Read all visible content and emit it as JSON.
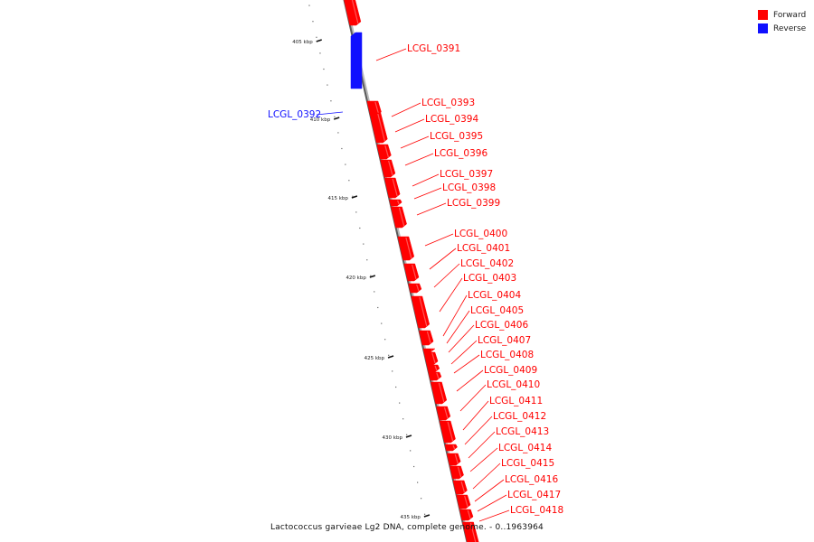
{
  "legend": {
    "forward": {
      "label": "Forward",
      "color": "#ff0000"
    },
    "reverse": {
      "label": "Reverse",
      "color": "#1010ff"
    }
  },
  "caption": "Lactococcus garvieae Lg2 DNA, complete genome. - 0..1963964",
  "ruler": {
    "unit": "kbp",
    "ticks": [
      {
        "kbp": 405,
        "label": "405 kbp"
      },
      {
        "kbp": 410,
        "label": "410 kbp"
      },
      {
        "kbp": 415,
        "label": "415 kbp"
      },
      {
        "kbp": 420,
        "label": "420 kbp"
      },
      {
        "kbp": 425,
        "label": "425 kbp"
      },
      {
        "kbp": 430,
        "label": "430 kbp"
      },
      {
        "kbp": 435,
        "label": "435 kbp"
      }
    ]
  },
  "genes": [
    {
      "name": "LCGL_0391",
      "strand": "forward"
    },
    {
      "name": "LCGL_0392",
      "strand": "reverse"
    },
    {
      "name": "LCGL_0393",
      "strand": "forward"
    },
    {
      "name": "LCGL_0394",
      "strand": "forward"
    },
    {
      "name": "LCGL_0395",
      "strand": "forward"
    },
    {
      "name": "LCGL_0396",
      "strand": "forward"
    },
    {
      "name": "LCGL_0397",
      "strand": "forward"
    },
    {
      "name": "LCGL_0398",
      "strand": "forward"
    },
    {
      "name": "LCGL_0399",
      "strand": "forward"
    },
    {
      "name": "LCGL_0400",
      "strand": "forward"
    },
    {
      "name": "LCGL_0401",
      "strand": "forward"
    },
    {
      "name": "LCGL_0402",
      "strand": "forward"
    },
    {
      "name": "LCGL_0403",
      "strand": "forward"
    },
    {
      "name": "LCGL_0404",
      "strand": "forward"
    },
    {
      "name": "LCGL_0405",
      "strand": "forward"
    },
    {
      "name": "LCGL_0406",
      "strand": "forward"
    },
    {
      "name": "LCGL_0407",
      "strand": "forward"
    },
    {
      "name": "LCGL_0408",
      "strand": "forward"
    },
    {
      "name": "LCGL_0409",
      "strand": "forward"
    },
    {
      "name": "LCGL_0410",
      "strand": "forward"
    },
    {
      "name": "LCGL_0411",
      "strand": "forward"
    },
    {
      "name": "LCGL_0412",
      "strand": "forward"
    },
    {
      "name": "LCGL_0413",
      "strand": "forward"
    },
    {
      "name": "LCGL_0414",
      "strand": "forward"
    },
    {
      "name": "LCGL_0415",
      "strand": "forward"
    },
    {
      "name": "LCGL_0416",
      "strand": "forward"
    },
    {
      "name": "LCGL_0417",
      "strand": "forward"
    },
    {
      "name": "LCGL_0418",
      "strand": "forward"
    }
  ]
}
